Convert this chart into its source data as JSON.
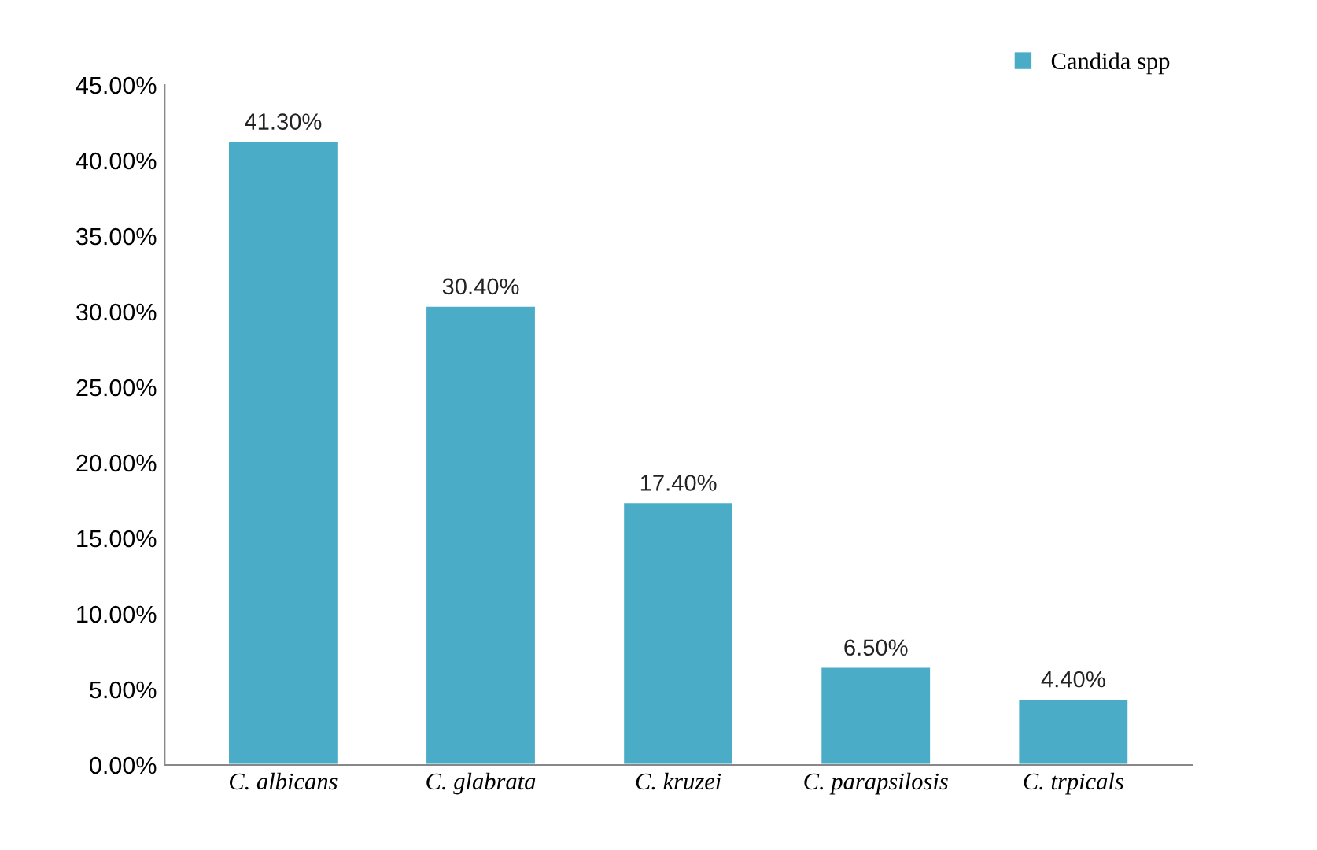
{
  "chart_data": {
    "type": "bar",
    "categories": [
      "C. albicans",
      "C. glabrata",
      "C. kruzei",
      "C. parapsilosis",
      "C. trpicals"
    ],
    "series": [
      {
        "name": "Candida spp",
        "color": "#4aacc6",
        "values": [
          41.3,
          30.4,
          17.4,
          6.5,
          4.4
        ],
        "value_labels": [
          "41.30%",
          "30.40%",
          "17.40%",
          "6.50%",
          "4.40%"
        ]
      }
    ],
    "ylim": [
      0,
      45
    ],
    "yticks": [
      {
        "value": 0,
        "label": "0.00%"
      },
      {
        "value": 5,
        "label": "5.00%"
      },
      {
        "value": 10,
        "label": "10.00%"
      },
      {
        "value": 15,
        "label": "15.00%"
      },
      {
        "value": 20,
        "label": "20.00%"
      },
      {
        "value": 25,
        "label": "25.00%"
      },
      {
        "value": 30,
        "label": "30.00%"
      },
      {
        "value": 35,
        "label": "35.00%"
      },
      {
        "value": 40,
        "label": "40.00%"
      },
      {
        "value": 45,
        "label": "45.00%"
      }
    ],
    "grid": false,
    "legend": "top right"
  }
}
